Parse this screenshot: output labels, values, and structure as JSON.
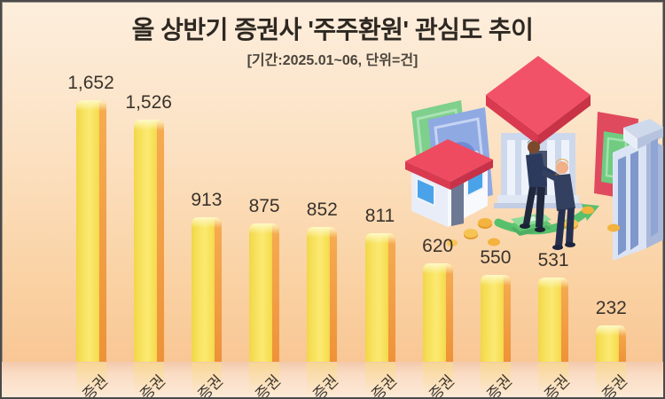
{
  "title": "올 상반기 증권사 '주주환원' 관심도 추이",
  "subtitle": "[기간:2025.01~06, 단위=건]",
  "chart_data": {
    "type": "bar",
    "title": "올 상반기 증권사 '주주환원' 관심도 추이",
    "subtitle": "[기간:2025.01~06, 단위=건]",
    "period": "2025.01~06",
    "unit": "건",
    "categories": [
      "증권",
      "증권",
      "증권",
      "증권",
      "증권",
      "증권",
      "증권",
      "증권",
      "증권",
      "증권"
    ],
    "values": [
      1652,
      1526,
      913,
      875,
      852,
      811,
      620,
      550,
      531,
      232
    ],
    "value_labels": [
      "1,652",
      "1,526",
      "913",
      "875",
      "852",
      "811",
      "620",
      "550",
      "531",
      "232"
    ],
    "ylim": [
      0,
      1800
    ],
    "grid": false,
    "legend": false,
    "x_tick_rotation_deg": 45
  },
  "colors": {
    "background_top": "#fdeedd",
    "background_bottom": "#f8c28e",
    "bar_yellow": "#f9e35c",
    "bar_side_orange": "#f09a41",
    "label_text": "#3a332c",
    "title_text": "#2e2822",
    "roof_red": "#ef4860",
    "building_blue": "#ccd7ec",
    "suit_navy": "#2e3b5e",
    "money_green": "#5fc571",
    "coin_gold": "#f3b33e"
  },
  "illustration": {
    "elements": [
      "bank-building",
      "house",
      "skyscraper",
      "banknotes",
      "businessmen-handshake",
      "cash-stack",
      "coins",
      "green-arrow"
    ]
  }
}
